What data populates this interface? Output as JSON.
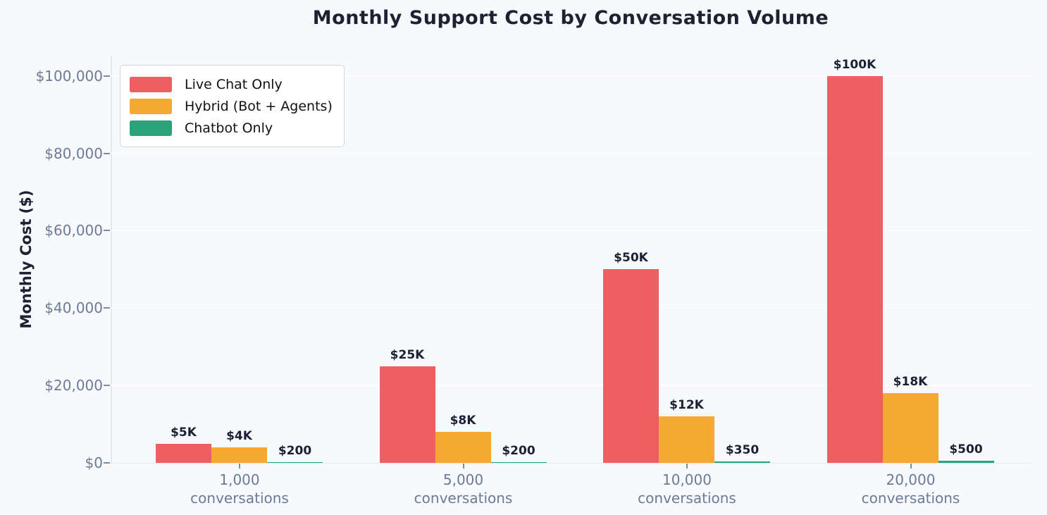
{
  "page": {
    "background": "#f8f9fd",
    "title_color": "#1d2233",
    "tick_color": "#6b7b95",
    "grid_color": "#ffffff",
    "spine_color": "#e6e8ef",
    "value_label_color": "#1b2134",
    "legend_background": "#ffffff",
    "legend_border": "#d6d6d6"
  },
  "chart_data": {
    "type": "bar",
    "title": "Monthly Support Cost by Conversation Volume",
    "xlabel": "",
    "ylabel": "Monthly Cost ($)",
    "categories": [
      "1,000",
      "5,000",
      "10,000",
      "20,000"
    ],
    "category_suffix": "conversations",
    "series": [
      {
        "name": "Live Chat Only",
        "color": "#ee5f63",
        "values": [
          5000,
          25000,
          50000,
          100000
        ],
        "labels": [
          "$5K",
          "$25K",
          "$50K",
          "$100K"
        ]
      },
      {
        "name": "Hybrid (Bot + Agents)",
        "color": "#f6a930",
        "values": [
          4000,
          8000,
          12000,
          18000
        ],
        "labels": [
          "$4K",
          "$8K",
          "$12K",
          "$18K"
        ]
      },
      {
        "name": "Chatbot Only",
        "color": "#2aa37b",
        "values": [
          200,
          200,
          350,
          500
        ],
        "labels": [
          "$200",
          "$200",
          "$350",
          "$500"
        ]
      }
    ],
    "ylim": [
      0,
      105000
    ],
    "yticks": [
      {
        "value": 0,
        "label": "$0"
      },
      {
        "value": 20000,
        "label": "$20,000"
      },
      {
        "value": 40000,
        "label": "$40,000"
      },
      {
        "value": 60000,
        "label": "$60,000"
      },
      {
        "value": 80000,
        "label": "$80,000"
      },
      {
        "value": 100000,
        "label": "$100,000"
      }
    ],
    "grid": true,
    "legend_position": "upper left"
  }
}
